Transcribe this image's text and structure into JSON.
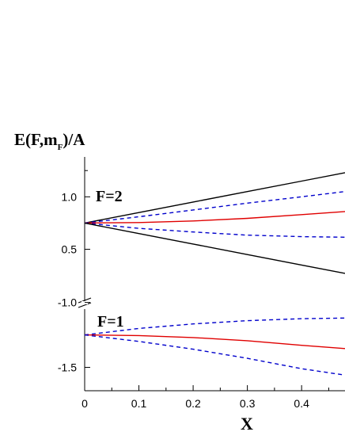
{
  "chart_data": {
    "type": "line",
    "ylabel": {
      "base": "E(F,m",
      "sub": "F",
      "tail": ")/A"
    },
    "xlabel": "X",
    "xlim": [
      0,
      0.48
    ],
    "x_ticks": [
      0,
      0.1,
      0.2,
      0.3,
      0.4
    ],
    "x_tick_labels": [
      "0",
      "0.1",
      "0.2",
      "0.3",
      "0.4"
    ],
    "y_axis_break": true,
    "y_upper_segment": {
      "ylim": [
        0.27,
        1.38
      ],
      "ticks": [
        0.5,
        1.0
      ],
      "tick_labels": [
        "0.5",
        "1.0"
      ]
    },
    "y_lower_segment": {
      "ylim": [
        -1.68,
        -0.99
      ],
      "ticks": [
        -1.5,
        -1.0
      ],
      "tick_labels": [
        "-1.5",
        "-1.0"
      ]
    },
    "annotations": [
      {
        "text": "F=2"
      },
      {
        "text": "F=1"
      }
    ],
    "series": [
      {
        "group": "F=2",
        "mF": 2,
        "style": "solid",
        "color": "#000000",
        "x": [
          0,
          0.1,
          0.2,
          0.3,
          0.4,
          0.48
        ],
        "y": [
          0.75,
          0.85,
          0.95,
          1.05,
          1.15,
          1.23
        ]
      },
      {
        "group": "F=2",
        "mF": 1,
        "style": "dashed",
        "color": "#0000cc",
        "x": [
          0,
          0.1,
          0.2,
          0.3,
          0.4,
          0.48
        ],
        "y": [
          0.75,
          0.81,
          0.875,
          0.94,
          1.0,
          1.05
        ]
      },
      {
        "group": "F=2",
        "mF": 0,
        "style": "solid",
        "color": "#e00000",
        "x": [
          0,
          0.1,
          0.2,
          0.3,
          0.4,
          0.48
        ],
        "y": [
          0.75,
          0.755,
          0.77,
          0.795,
          0.83,
          0.86
        ]
      },
      {
        "group": "F=2",
        "mF": -1,
        "style": "dashed",
        "color": "#0000cc",
        "x": [
          0,
          0.1,
          0.2,
          0.3,
          0.4,
          0.48
        ],
        "y": [
          0.75,
          0.7,
          0.665,
          0.635,
          0.62,
          0.615
        ]
      },
      {
        "group": "F=2",
        "mF": -2,
        "style": "solid",
        "color": "#000000",
        "x": [
          0,
          0.1,
          0.2,
          0.3,
          0.4,
          0.48
        ],
        "y": [
          0.75,
          0.65,
          0.55,
          0.45,
          0.35,
          0.27
        ]
      },
      {
        "group": "F=1",
        "mF": -1,
        "style": "dashed",
        "color": "#0000cc",
        "x": [
          0,
          0.1,
          0.2,
          0.3,
          0.4,
          0.48
        ],
        "y": [
          -1.25,
          -1.2,
          -1.165,
          -1.14,
          -1.125,
          -1.12
        ]
      },
      {
        "group": "F=1",
        "mF": 0,
        "style": "solid",
        "color": "#e00000",
        "x": [
          0,
          0.1,
          0.2,
          0.3,
          0.4,
          0.48
        ],
        "y": [
          -1.25,
          -1.255,
          -1.27,
          -1.295,
          -1.33,
          -1.355
        ]
      },
      {
        "group": "F=1",
        "mF": 1,
        "style": "dashed",
        "color": "#0000cc",
        "x": [
          0,
          0.1,
          0.2,
          0.3,
          0.4,
          0.48
        ],
        "y": [
          -1.25,
          -1.3,
          -1.36,
          -1.43,
          -1.51,
          -1.56
        ]
      }
    ]
  }
}
